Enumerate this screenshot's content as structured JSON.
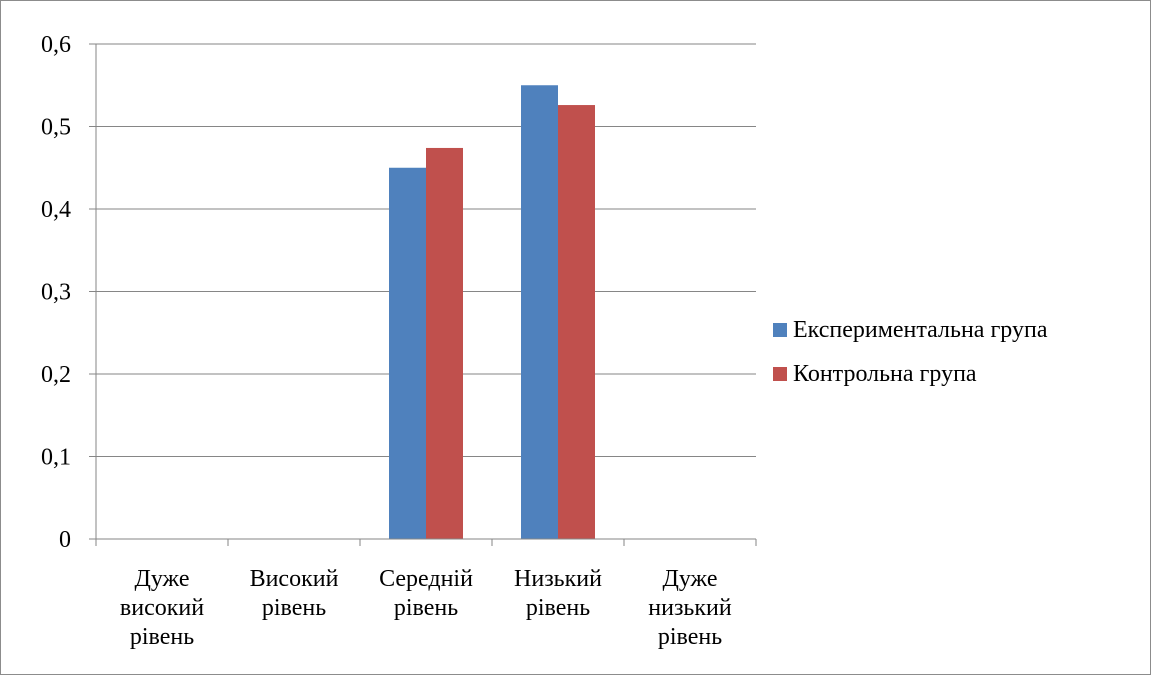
{
  "chart_data": {
    "type": "bar",
    "categories": [
      [
        "Дуже",
        "високий",
        "рівень"
      ],
      [
        "Високий",
        "рівень"
      ],
      [
        "Середній",
        "рівень"
      ],
      [
        "Низький",
        "рівень"
      ],
      [
        "Дуже",
        "низький",
        "рівень"
      ]
    ],
    "series": [
      {
        "name": "Експериментальна група",
        "color": "#4f81bd",
        "values": [
          0,
          0,
          0.45,
          0.55,
          0
        ]
      },
      {
        "name": "Контрольна група",
        "color": "#c0504d",
        "values": [
          0,
          0,
          0.474,
          0.526,
          0
        ]
      }
    ],
    "ylim": [
      0,
      0.6
    ],
    "yticks": [
      "0",
      "0,1",
      "0,2",
      "0,3",
      "0,4",
      "0,5",
      "0,6"
    ],
    "grid": true,
    "legend_position": "right"
  }
}
